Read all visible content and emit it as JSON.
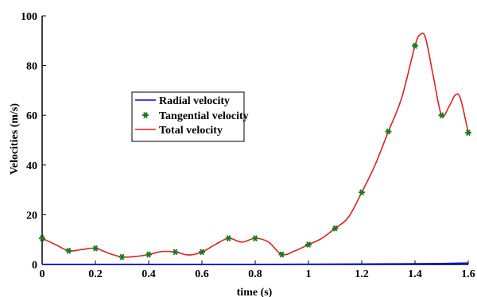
{
  "chart_data": {
    "type": "line",
    "xlabel": "time (s)",
    "ylabel": "Velocities (m/s)",
    "xlim": [
      0,
      1.6
    ],
    "ylim": [
      0,
      100
    ],
    "xticks": [
      "0",
      "0.2",
      "0.4",
      "0.6",
      "0.8",
      "1",
      "1.2",
      "1.4",
      "1.6"
    ],
    "yticks": [
      "0",
      "20",
      "40",
      "60",
      "80",
      "100"
    ],
    "grid": false,
    "legend_position": "center-left",
    "series": [
      {
        "name": "Radial velocity",
        "style": "line",
        "color": "#0000ff",
        "x": [
          0,
          0.2,
          0.4,
          0.6,
          0.8,
          1.0,
          1.2,
          1.4,
          1.5,
          1.6
        ],
        "y": [
          0.0,
          0.0,
          0.0,
          0.0,
          0.0,
          0.1,
          0.2,
          0.3,
          0.4,
          0.6
        ]
      },
      {
        "name": "Tangential velocity",
        "style": "markers",
        "color": "#1a7a1a",
        "x": [
          0,
          0.1,
          0.2,
          0.3,
          0.4,
          0.5,
          0.6,
          0.7,
          0.8,
          0.9,
          1.0,
          1.1,
          1.2,
          1.3,
          1.4,
          1.5,
          1.6
        ],
        "y": [
          10.5,
          5.5,
          6.5,
          3.0,
          4.0,
          5.0,
          5.0,
          10.5,
          10.5,
          4.0,
          8.0,
          14.5,
          29.0,
          53.5,
          88.0,
          60.0,
          53.0
        ]
      },
      {
        "name": "Total velocity",
        "style": "line",
        "color": "#e02020",
        "x": [
          0,
          0.05,
          0.1,
          0.15,
          0.2,
          0.25,
          0.3,
          0.35,
          0.4,
          0.45,
          0.5,
          0.55,
          0.6,
          0.65,
          0.7,
          0.75,
          0.8,
          0.85,
          0.9,
          0.95,
          1.0,
          1.05,
          1.1,
          1.15,
          1.2,
          1.25,
          1.3,
          1.35,
          1.4,
          1.42,
          1.44,
          1.47,
          1.5,
          1.53,
          1.55,
          1.57,
          1.6
        ],
        "y": [
          10.5,
          8.0,
          5.5,
          6.0,
          6.5,
          4.5,
          3.0,
          3.2,
          4.0,
          5.2,
          5.0,
          3.8,
          5.0,
          8.0,
          10.5,
          9.0,
          10.5,
          9.0,
          4.0,
          5.5,
          8.0,
          10.5,
          14.5,
          19.0,
          29.0,
          40.0,
          53.5,
          67.0,
          88.0,
          92.5,
          91.0,
          75.0,
          60.0,
          64.0,
          68.0,
          67.0,
          53.0
        ]
      }
    ]
  }
}
